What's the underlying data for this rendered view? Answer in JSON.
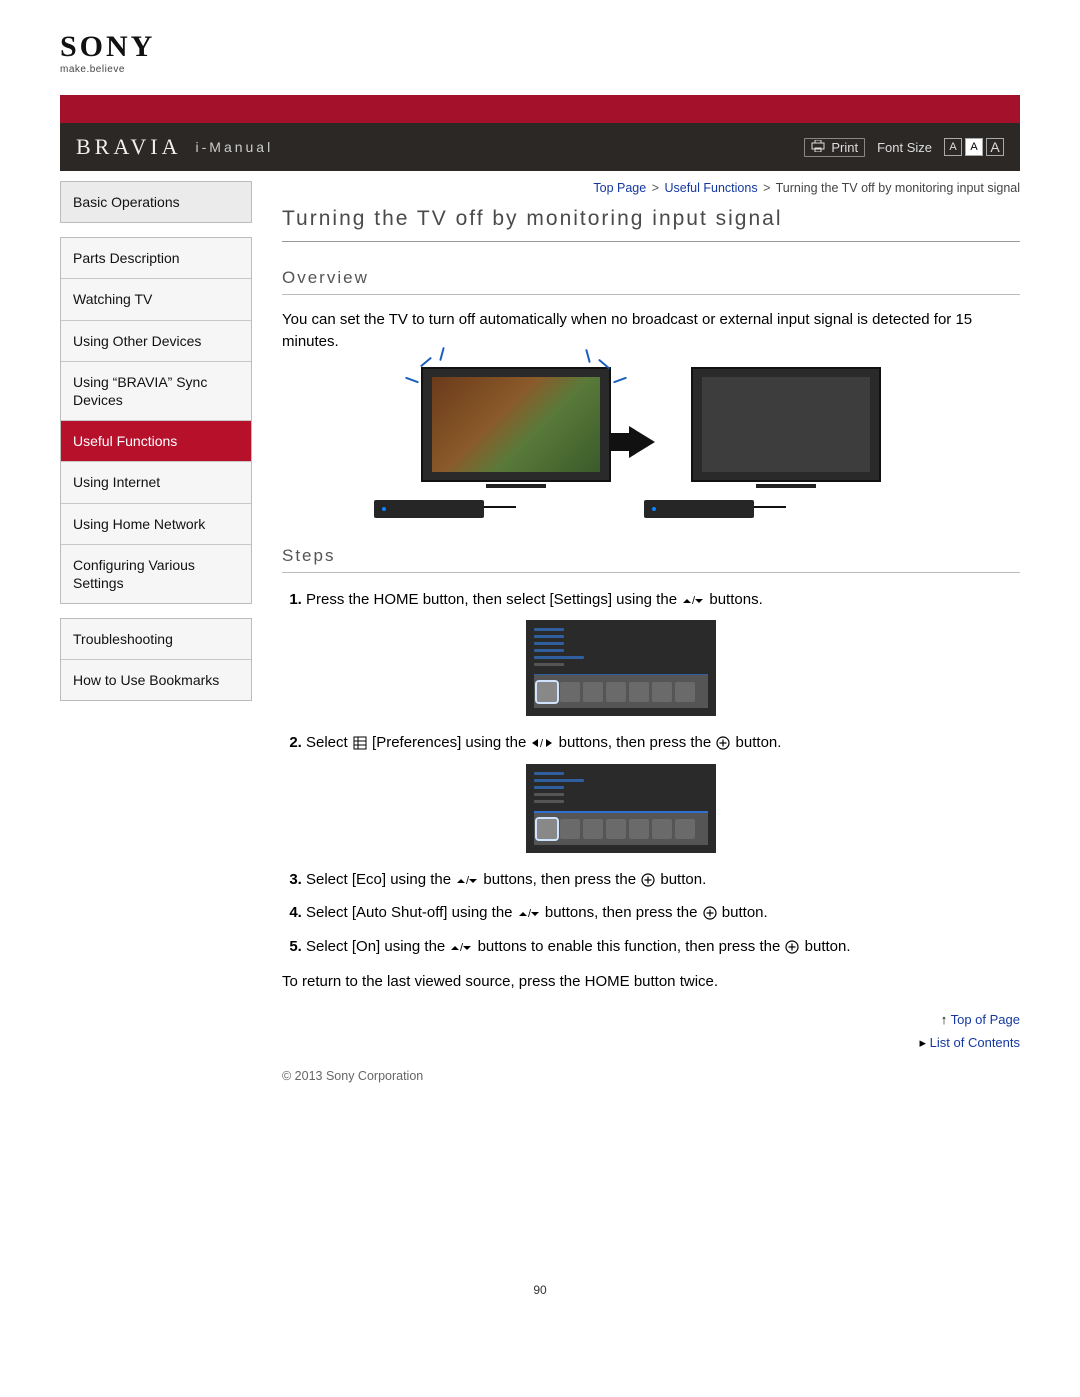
{
  "brand": {
    "name": "SONY",
    "tagline": "make.believe",
    "product": "BRAVIA",
    "manual_label": "i-Manual"
  },
  "topbar": {
    "print_label": "Print",
    "fontsize_label": "Font Size",
    "font_letters": [
      "A",
      "A",
      "A"
    ]
  },
  "nav_groups": [
    {
      "items": [
        {
          "label": "Basic Operations",
          "lead": true
        }
      ]
    },
    {
      "items": [
        {
          "label": "Parts Description"
        },
        {
          "label": "Watching TV"
        },
        {
          "label": "Using Other Devices"
        },
        {
          "label": "Using “BRAVIA” Sync Devices"
        },
        {
          "label": "Useful Functions",
          "active": true
        },
        {
          "label": "Using Internet"
        },
        {
          "label": "Using Home Network"
        },
        {
          "label": "Configuring Various Settings"
        }
      ]
    },
    {
      "items": [
        {
          "label": "Troubleshooting"
        },
        {
          "label": "How to Use Bookmarks"
        }
      ]
    }
  ],
  "breadcrumb": {
    "parts": [
      "Top Page",
      "Useful Functions"
    ],
    "current": "Turning the TV off by monitoring input signal",
    "sep": ">"
  },
  "page_title": "Turning the TV off by monitoring input signal",
  "sections": {
    "overview_h": "Overview",
    "overview_text": "You can set the TV to turn off automatically when no broadcast or external input signal is detected for 15 minutes.",
    "steps_h": "Steps"
  },
  "steps": [
    {
      "pre": "Press the HOME button, then select [Settings] using the ",
      "mid": "",
      "post": " buttons.",
      "icons": [
        "updown"
      ]
    },
    {
      "pre": "Select ",
      "prefs": true,
      "mid1": " [Preferences] using the ",
      "mid2": " buttons, then press the ",
      "post": " button.",
      "icons": [
        "leftright",
        "plus"
      ]
    },
    {
      "pre": "Select [Eco] using the ",
      "mid": " buttons, then press the ",
      "post": " button.",
      "icons": [
        "updown",
        "plus"
      ]
    },
    {
      "pre": "Select [Auto Shut-off] using the ",
      "mid": " buttons, then press the ",
      "post": " button.",
      "icons": [
        "updown",
        "plus"
      ]
    },
    {
      "pre": "Select [On] using the ",
      "mid": " buttons to enable this function, then press the ",
      "post": " button.",
      "icons": [
        "updown",
        "plus"
      ]
    }
  ],
  "note": "To return to the last viewed source, press the HOME button twice.",
  "footer": {
    "top_link": "Top of Page",
    "contents_link": "List of Contents",
    "copyright": "© 2013 Sony Corporation"
  },
  "page_number": "90",
  "colors": {
    "accent_red": "#b6102b",
    "link_blue": "#1438a0",
    "spark_blue": "#1a5fbf",
    "bar_dark": "#2b2826"
  }
}
